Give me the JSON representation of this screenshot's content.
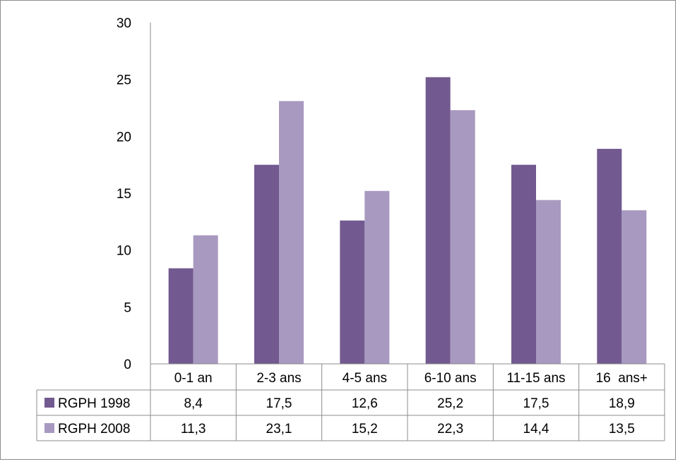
{
  "chart_data": {
    "type": "bar",
    "categories": [
      "0-1 an",
      "2-3 ans",
      "4-5 ans",
      "6-10 ans",
      "11-15 ans",
      "16  ans+"
    ],
    "series": [
      {
        "name": "RGPH 1998",
        "values": [
          8.4,
          17.5,
          12.6,
          25.2,
          17.5,
          18.9
        ],
        "labels": [
          "8,4",
          "17,5",
          "12,6",
          "25,2",
          "17,5",
          "18,9"
        ],
        "color": "#72598f"
      },
      {
        "name": "RGPH 2008",
        "values": [
          11.3,
          23.1,
          15.2,
          22.3,
          14.4,
          13.5
        ],
        "labels": [
          "11,3",
          "23,1",
          "15,2",
          "22,3",
          "14,4",
          "13,5"
        ],
        "color": "#a899c0"
      }
    ],
    "y_ticks": [
      "0",
      "5",
      "10",
      "15",
      "20",
      "25",
      "30"
    ],
    "ylim": [
      0,
      30
    ],
    "grid": false,
    "legend": "data-table-left",
    "data_table": true
  }
}
